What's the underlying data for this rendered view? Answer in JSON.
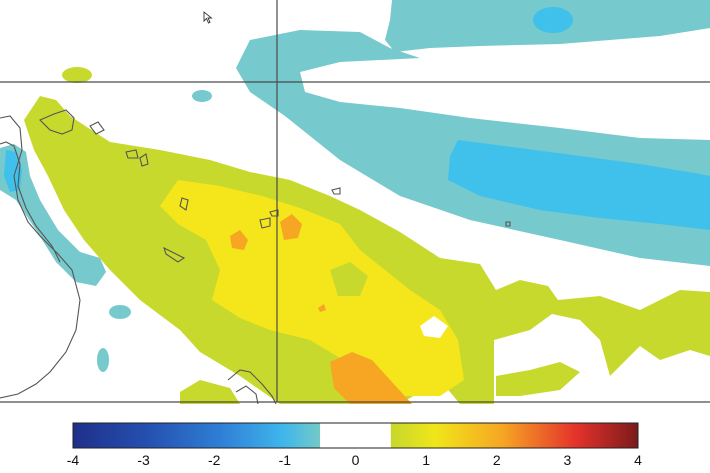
{
  "colorbar": {
    "ticks": [
      "-4",
      "-3",
      "-2",
      "-1",
      "0",
      "1",
      "2",
      "3",
      "4"
    ],
    "range": [
      -4,
      4
    ],
    "neutral_band": [
      -0.5,
      0.5
    ],
    "palette": [
      "#1f2f8a",
      "#2550b0",
      "#2f7fd6",
      "#3fb6ec",
      "#74c9c6",
      "#ffffff",
      "#c7d72c",
      "#f0e61a",
      "#f6a623",
      "#e4322b",
      "#7a1b1b"
    ]
  },
  "map": {
    "gridlines": "on",
    "coastline_color": "#555555",
    "field_colors": {
      "light_cyan": "#76c9cc",
      "sky_blue": "#3fc1ec",
      "yellow_green": "#c8d92e",
      "yellow": "#f4e61b",
      "orange": "#f6a623"
    }
  }
}
